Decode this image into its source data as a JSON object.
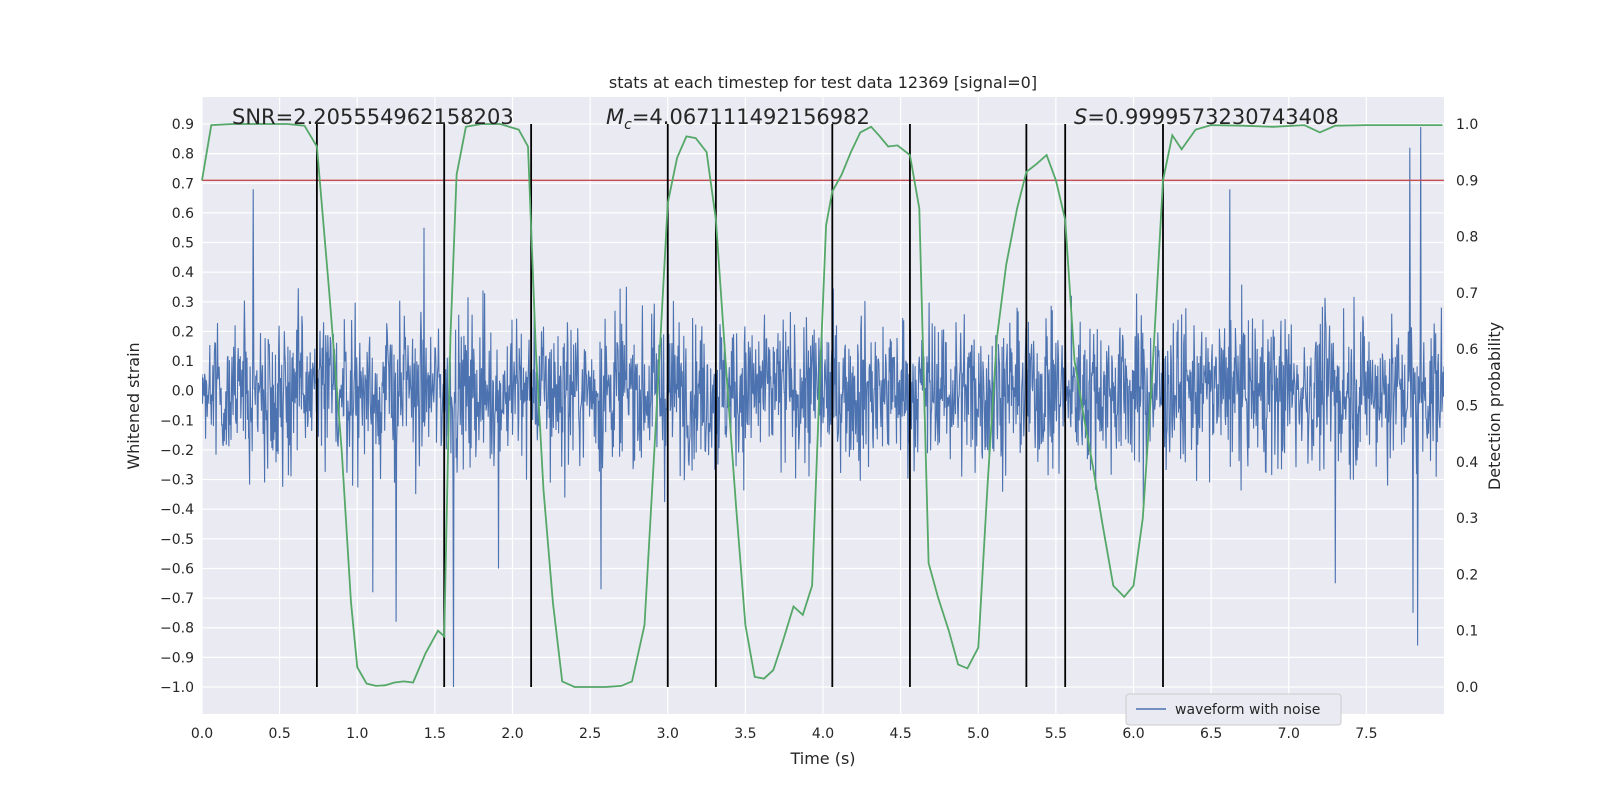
{
  "chart_data": {
    "type": "line",
    "title": "stats at each timestep for test data 12369 [signal=0]",
    "xlabel": "Time (s)",
    "ylabel_left": "Whitened strain",
    "ylabel_right": "Detection probability",
    "xlim": [
      0.0,
      8.0
    ],
    "ylim_left": [
      -1.0,
      0.9
    ],
    "ylim_right": [
      0.0,
      1.0
    ],
    "x_ticks": [
      "0.0",
      "0.5",
      "1.0",
      "1.5",
      "2.0",
      "2.5",
      "3.0",
      "3.5",
      "4.0",
      "4.5",
      "5.0",
      "5.5",
      "6.0",
      "6.5",
      "7.0",
      "7.5"
    ],
    "x_tick_values": [
      0.0,
      0.5,
      1.0,
      1.5,
      2.0,
      2.5,
      3.0,
      3.5,
      4.0,
      4.5,
      5.0,
      5.5,
      6.0,
      6.5,
      7.0,
      7.5
    ],
    "y_left_ticks": [
      "0.9",
      "0.8",
      "0.7",
      "0.6",
      "0.5",
      "0.4",
      "0.3",
      "0.2",
      "0.1",
      "0.0",
      "−0.1",
      "−0.2",
      "−0.3",
      "−0.4",
      "−0.5",
      "−0.6",
      "−0.7",
      "−0.8",
      "−0.9",
      "−1.0"
    ],
    "y_left_tick_values": [
      0.9,
      0.8,
      0.7,
      0.6,
      0.5,
      0.4,
      0.3,
      0.2,
      0.1,
      0.0,
      -0.1,
      -0.2,
      -0.3,
      -0.4,
      -0.5,
      -0.6,
      -0.7,
      -0.8,
      -0.9,
      -1.0
    ],
    "y_right_ticks": [
      "1.0",
      "0.9",
      "0.8",
      "0.7",
      "0.6",
      "0.5",
      "0.4",
      "0.3",
      "0.2",
      "0.1",
      "0.0"
    ],
    "y_right_tick_values": [
      1.0,
      0.9,
      0.8,
      0.7,
      0.6,
      0.5,
      0.4,
      0.3,
      0.2,
      0.1,
      0.0
    ],
    "annotations": {
      "snr": "SNR=2.205554962158203",
      "mc_symbol": "M",
      "mc_sub": "c",
      "mc_value": "=4.067111492156982",
      "s_symbol": "S",
      "s_value": "=0.9999573230743408"
    },
    "threshold": {
      "value": 0.9,
      "axis": "right",
      "color": "#c44e52"
    },
    "vertical_markers": [
      0.74,
      1.56,
      2.12,
      3.0,
      3.31,
      4.06,
      4.56,
      5.31,
      5.56,
      6.19
    ],
    "noise_series": {
      "name": "waveform with noise",
      "color": "#4c72b0",
      "duration": 8.0,
      "typical_amplitude": 0.25,
      "spikes": [
        {
          "t": 0.33,
          "v": 0.68
        },
        {
          "t": 1.43,
          "v": 0.55
        },
        {
          "t": 1.56,
          "v": 0.62
        },
        {
          "t": 1.62,
          "v": -1.0
        },
        {
          "t": 1.25,
          "v": -0.78
        },
        {
          "t": 1.1,
          "v": -0.68
        },
        {
          "t": 1.91,
          "v": -0.6
        },
        {
          "t": 2.57,
          "v": -0.67
        },
        {
          "t": 3.0,
          "v": 0.78
        },
        {
          "t": 6.62,
          "v": 0.68
        },
        {
          "t": 7.3,
          "v": -0.65
        },
        {
          "t": 7.78,
          "v": 0.82
        },
        {
          "t": 7.85,
          "v": 0.89
        },
        {
          "t": 7.83,
          "v": -0.86
        },
        {
          "t": 7.8,
          "v": -0.75
        }
      ]
    },
    "probability_series": {
      "color": "#55a868",
      "x": [
        0.0,
        0.06,
        0.2,
        0.4,
        0.55,
        0.66,
        0.74,
        0.82,
        0.9,
        0.96,
        1.0,
        1.06,
        1.12,
        1.18,
        1.24,
        1.3,
        1.36,
        1.44,
        1.52,
        1.56,
        1.6,
        1.64,
        1.7,
        1.8,
        1.92,
        2.04,
        2.1,
        2.15,
        2.2,
        2.26,
        2.32,
        2.4,
        2.5,
        2.6,
        2.7,
        2.77,
        2.85,
        2.92,
        3.0,
        3.06,
        3.12,
        3.18,
        3.25,
        3.31,
        3.38,
        3.44,
        3.5,
        3.56,
        3.62,
        3.68,
        3.74,
        3.81,
        3.87,
        3.93,
        3.98,
        4.02,
        4.06,
        4.12,
        4.18,
        4.24,
        4.31,
        4.36,
        4.42,
        4.48,
        4.56,
        4.62,
        4.68,
        4.74,
        4.81,
        4.87,
        4.93,
        5.0,
        5.06,
        5.12,
        5.18,
        5.25,
        5.31,
        5.38,
        5.44,
        5.5,
        5.56,
        5.62,
        5.68,
        5.74,
        5.8,
        5.87,
        5.94,
        6.0,
        6.06,
        6.12,
        6.19,
        6.25,
        6.31,
        6.4,
        6.5,
        6.7,
        6.9,
        7.1,
        7.2,
        7.3,
        7.5,
        7.7,
        7.99
      ],
      "values": [
        0.9,
        0.998,
        1.0,
        1.0,
        1.0,
        0.997,
        0.96,
        0.7,
        0.42,
        0.15,
        0.035,
        0.006,
        0.002,
        0.003,
        0.008,
        0.01,
        0.008,
        0.06,
        0.1,
        0.09,
        0.62,
        0.91,
        0.995,
        1.0,
        1.0,
        0.99,
        0.96,
        0.6,
        0.35,
        0.15,
        0.01,
        0.0,
        0.0,
        0.0,
        0.002,
        0.01,
        0.11,
        0.45,
        0.86,
        0.94,
        0.978,
        0.975,
        0.95,
        0.83,
        0.55,
        0.32,
        0.11,
        0.018,
        0.015,
        0.03,
        0.08,
        0.143,
        0.128,
        0.18,
        0.55,
        0.82,
        0.88,
        0.91,
        0.95,
        0.985,
        0.995,
        0.98,
        0.96,
        0.962,
        0.945,
        0.85,
        0.22,
        0.16,
        0.1,
        0.04,
        0.033,
        0.07,
        0.36,
        0.62,
        0.75,
        0.85,
        0.915,
        0.93,
        0.945,
        0.9,
        0.83,
        0.58,
        0.48,
        0.39,
        0.29,
        0.18,
        0.16,
        0.18,
        0.3,
        0.55,
        0.9,
        0.98,
        0.955,
        0.99,
        0.998,
        0.997,
        0.995,
        0.998,
        0.985,
        0.997,
        0.998,
        0.998,
        0.998
      ]
    },
    "legend": {
      "entries": [
        "waveform with noise"
      ],
      "location": "lower-right"
    }
  }
}
